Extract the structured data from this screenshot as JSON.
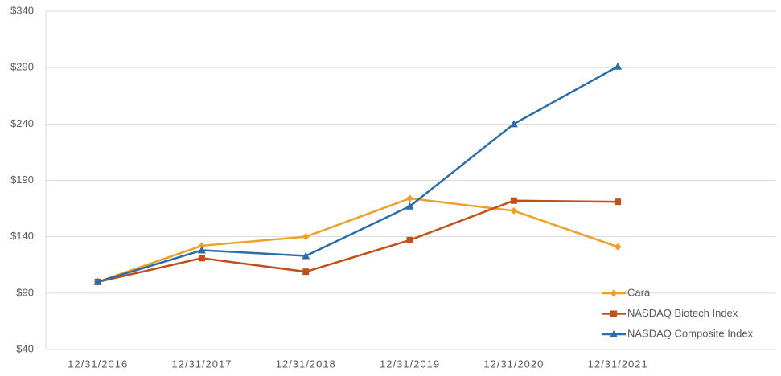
{
  "chart_data": {
    "type": "line",
    "categories": [
      "12/31/2016",
      "12/31/2017",
      "12/31/2018",
      "12/31/2019",
      "12/31/2020",
      "12/31/2021"
    ],
    "series": [
      {
        "name": "Cara",
        "color": "#eda12a",
        "marker": "diamond",
        "values": [
          100,
          132,
          140,
          174,
          163,
          131
        ]
      },
      {
        "name": "NASDAQ Biotech Index",
        "color": "#c0501a",
        "marker": "square",
        "values": [
          100,
          121,
          109,
          137,
          172,
          171
        ]
      },
      {
        "name": "NASDAQ Composite Index",
        "color": "#2a6da8",
        "marker": "triangle",
        "values": [
          100,
          128,
          123,
          167,
          240,
          291
        ]
      }
    ],
    "ylim": [
      40,
      340
    ],
    "yticks": [
      {
        "value": 40,
        "label": "$40"
      },
      {
        "value": 90,
        "label": "$90"
      },
      {
        "value": 140,
        "label": "$140"
      },
      {
        "value": 190,
        "label": "$190"
      },
      {
        "value": 240,
        "label": "$240"
      },
      {
        "value": 290,
        "label": "$290"
      },
      {
        "value": 340,
        "label": "$340"
      }
    ],
    "grid": true,
    "legend": "lower-right"
  }
}
